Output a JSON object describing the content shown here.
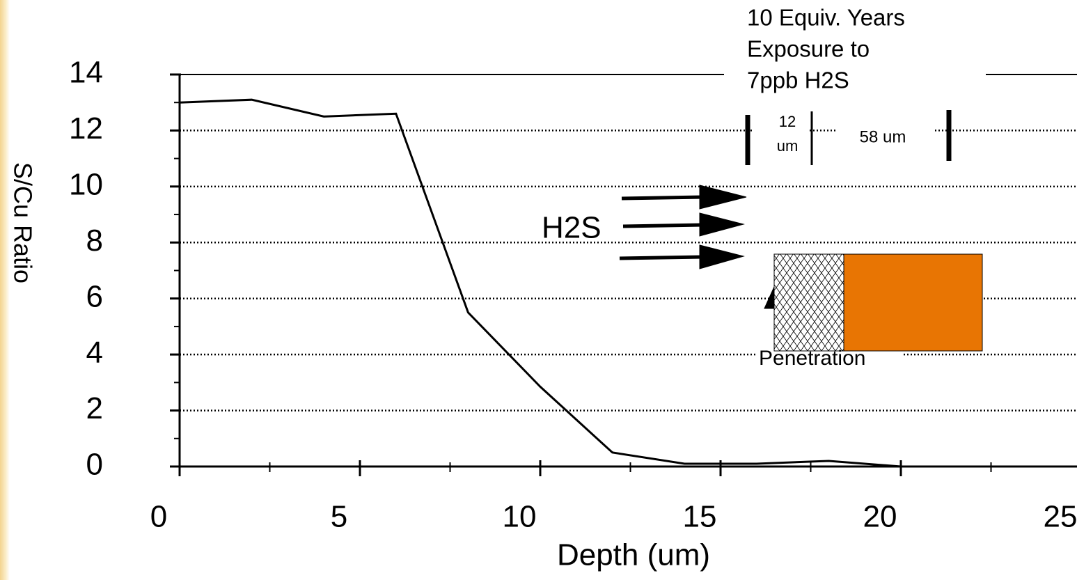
{
  "chart_data": {
    "type": "line",
    "xlabel": "Depth (um)",
    "ylabel": "S/Cu Ratio",
    "x": [
      0,
      2,
      4,
      6,
      8,
      10,
      12,
      14,
      16,
      18,
      20
    ],
    "series": [
      {
        "color": "#000000",
        "values": [
          13.0,
          13.1,
          12.5,
          12.6,
          5.5,
          2.85,
          0.5,
          0.1,
          0.1,
          0.2,
          0.0
        ]
      }
    ],
    "xlim": [
      0,
      25
    ],
    "ylim": [
      0,
      14
    ],
    "xticks": [
      0,
      5,
      10,
      15,
      20,
      25
    ],
    "yticks": [
      0,
      2,
      4,
      6,
      8,
      10,
      12,
      14
    ],
    "grid": true,
    "annotations": {
      "exposure": [
        "10 Equiv. Years",
        "Exposure to",
        "7ppb H2S"
      ],
      "layer_top": "12",
      "layer_bottom": "um",
      "substrate": "58 um",
      "gas": "H2S",
      "penetration": "Penetration"
    }
  }
}
